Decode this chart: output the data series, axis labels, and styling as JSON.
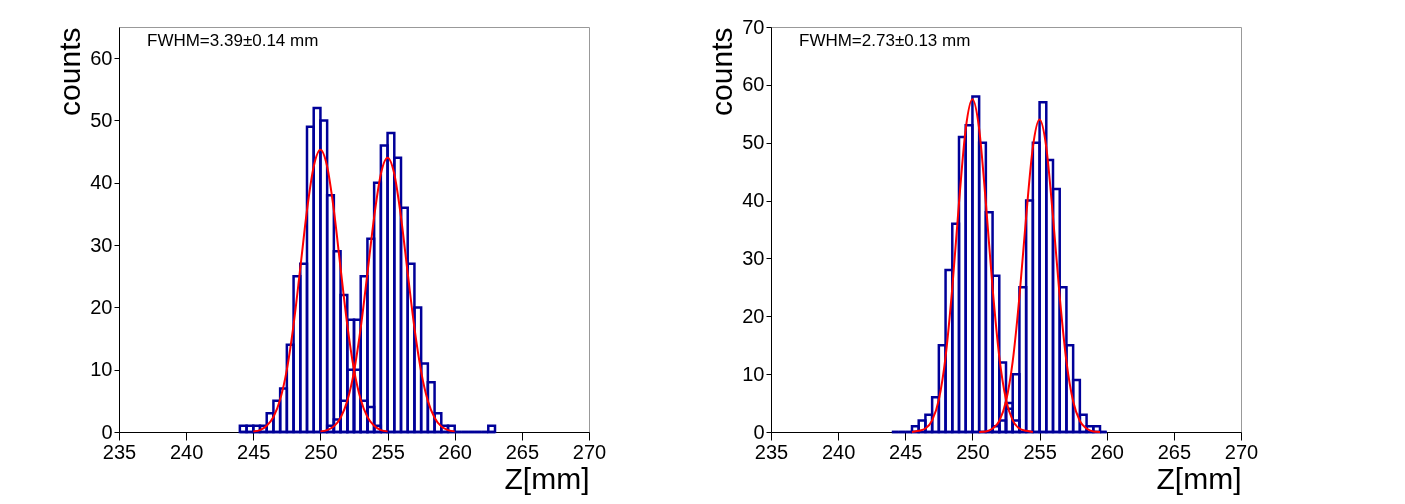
{
  "chart_data": [
    {
      "type": "histogram",
      "xlabel": "Z[mm]",
      "ylabel": "counts",
      "annotations": [
        "FWHM=3.39±0.14 mm"
      ],
      "xlim": [
        235,
        270
      ],
      "xticks": [
        235,
        240,
        245,
        250,
        255,
        260,
        265,
        270
      ],
      "ylim": [
        0,
        65
      ],
      "yticks": [
        0,
        10,
        20,
        30,
        40,
        50,
        60
      ],
      "grid": false,
      "legend": false,
      "bins": [
        244,
        244.5,
        245,
        245.5,
        246,
        246.5,
        247,
        247.5,
        248,
        248.5,
        249,
        249.5,
        250,
        250.5,
        251,
        251.5,
        252,
        252.5,
        253,
        253.5,
        254,
        254.5,
        255,
        255.5,
        256,
        256.5,
        257,
        257.5,
        258,
        258.5,
        259,
        259.5,
        260,
        260.5,
        261,
        261.5,
        262,
        262.5,
        263
      ],
      "series": [
        {
          "type": "histogram",
          "color": "#000099",
          "values": [
            1,
            1,
            1,
            1,
            3,
            5,
            7,
            14,
            25,
            27,
            49,
            52,
            50,
            38,
            29,
            22,
            18,
            10,
            5,
            4,
            1,
            0,
            0,
            0,
            0,
            0,
            0,
            0,
            0,
            0,
            0,
            0,
            0,
            0,
            0,
            0,
            0,
            0
          ]
        },
        {
          "type": "histogram",
          "color": "#000099",
          "values": [
            0,
            0,
            0,
            0,
            0,
            0,
            0,
            0,
            0,
            0,
            0,
            0,
            0,
            1,
            2,
            5,
            10,
            18,
            25,
            31,
            40,
            46,
            48,
            44,
            36,
            27,
            20,
            11,
            8,
            3,
            1,
            1,
            0,
            0,
            0,
            0,
            0,
            1
          ]
        },
        {
          "type": "line",
          "color": "#ff0000",
          "x": [
            245,
            245.5,
            246,
            246.5,
            247,
            247.5,
            248,
            248.5,
            249,
            249.5,
            250,
            250.5,
            251,
            251.5,
            252,
            252.5,
            253,
            253.5,
            254,
            254.5,
            255
          ],
          "values": [
            0.1,
            0.3,
            1.0,
            2.4,
            5.2,
            10,
            17.2,
            26.3,
            35.6,
            42.6,
            45.3,
            42.6,
            35.6,
            26.3,
            17.2,
            10,
            5.2,
            2.4,
            1.0,
            0.3,
            0.1
          ]
        },
        {
          "type": "line",
          "color": "#ff0000",
          "x": [
            250,
            250.5,
            251,
            251.5,
            252,
            252.5,
            253,
            253.5,
            254,
            254.5,
            255,
            255.5,
            256,
            256.5,
            257,
            257.5,
            258,
            258.5,
            259,
            259.5,
            260
          ],
          "values": [
            0.1,
            0.3,
            0.9,
            2.3,
            5.0,
            9.7,
            16.7,
            25.5,
            34.5,
            41.4,
            44,
            41.4,
            34.5,
            25.5,
            16.7,
            9.7,
            5.0,
            2.3,
            0.9,
            0.3,
            0.1
          ]
        }
      ]
    },
    {
      "type": "histogram",
      "xlabel": "Z[mm]",
      "ylabel": "counts",
      "annotations": [
        "FWHM=2.73±0.13 mm"
      ],
      "xlim": [
        235,
        270
      ],
      "xticks": [
        235,
        240,
        245,
        250,
        255,
        260,
        265,
        270
      ],
      "ylim": [
        0,
        70
      ],
      "yticks": [
        0,
        10,
        20,
        30,
        40,
        50,
        60,
        70
      ],
      "grid": false,
      "legend": false,
      "bins": [
        244,
        244.5,
        245,
        245.5,
        246,
        246.5,
        247,
        247.5,
        248,
        248.5,
        249,
        249.5,
        250,
        250.5,
        251,
        251.5,
        252,
        252.5,
        253,
        253.5,
        254,
        254.5,
        255,
        255.5,
        256,
        256.5,
        257,
        257.5,
        258,
        258.5,
        259,
        259.5,
        260
      ],
      "series": [
        {
          "type": "histogram",
          "color": "#000099",
          "values": [
            0,
            0,
            0,
            1,
            2,
            3,
            6,
            15,
            28,
            36,
            51,
            53,
            58,
            50,
            38,
            27,
            12,
            5,
            2,
            0,
            0,
            0,
            0,
            0,
            0,
            0,
            0,
            0,
            0,
            0,
            0,
            0
          ]
        },
        {
          "type": "histogram",
          "color": "#000099",
          "values": [
            0,
            0,
            0,
            0,
            0,
            0,
            0,
            0,
            0,
            0,
            0,
            0,
            0,
            0,
            0,
            1,
            2,
            4,
            10,
            25,
            40,
            50,
            57,
            47,
            42,
            25,
            15,
            9,
            3,
            1,
            1,
            0
          ]
        },
        {
          "type": "line",
          "color": "#ff0000",
          "x": [
            245.5,
            246,
            246.5,
            247,
            247.5,
            248,
            248.5,
            249,
            249.5,
            250,
            250.5,
            251,
            251.5,
            252,
            252.5,
            253,
            253.5,
            254,
            254.5
          ],
          "values": [
            0,
            0.2,
            0.6,
            2.0,
            5.6,
            13.0,
            24.9,
            39.6,
            52.4,
            57.5,
            52.4,
            39.6,
            24.9,
            13.0,
            5.6,
            2.0,
            0.6,
            0.2,
            0
          ]
        },
        {
          "type": "line",
          "color": "#ff0000",
          "x": [
            250.5,
            251,
            251.5,
            252,
            252.5,
            253,
            253.5,
            254,
            254.5,
            255,
            255.5,
            256,
            256.5,
            257,
            257.5,
            258,
            258.5,
            259,
            259.5
          ],
          "values": [
            0,
            0.1,
            0.6,
            1.9,
            5.3,
            12.2,
            23.4,
            37.2,
            49.2,
            54,
            49.2,
            37.2,
            23.4,
            12.2,
            5.3,
            1.9,
            0.6,
            0.1,
            0
          ]
        }
      ]
    }
  ]
}
